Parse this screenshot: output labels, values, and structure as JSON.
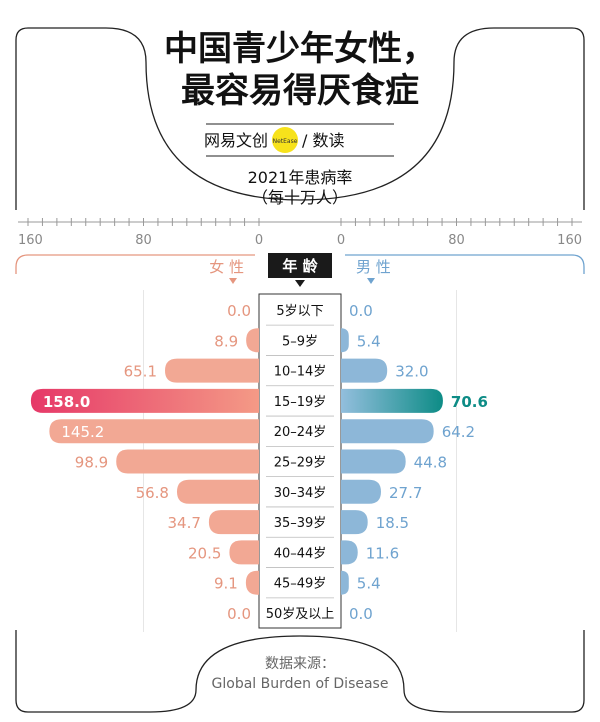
{
  "header": {
    "title_line1": "中国青少年女性，",
    "title_line2": "最容易得厌食症",
    "brand_left": "网易文创",
    "brand_badge": "NetEase",
    "brand_right": "/ 数读",
    "subtitle_line1": "2021年患病率",
    "subtitle_line2": "（每十万人）"
  },
  "source": {
    "label": "数据来源：",
    "name": "Global Burden of Disease"
  },
  "chart_data": {
    "type": "bar",
    "orientation": "horizontal-butterfly",
    "xlim": [
      0,
      160
    ],
    "left_ticks": [
      "160",
      "80",
      "0"
    ],
    "right_ticks": [
      "0",
      "80",
      "160"
    ],
    "left_header": "女 性",
    "right_header": "男 性",
    "center_header": "年 龄",
    "categories": [
      "5岁以下",
      "5–9岁",
      "10–14岁",
      "15–19岁",
      "20–24岁",
      "25–29岁",
      "30–34岁",
      "35–39岁",
      "40–44岁",
      "45–49岁",
      "50岁及以上"
    ],
    "series": [
      {
        "name": "女性",
        "values": [
          0.0,
          8.9,
          65.1,
          158.0,
          145.2,
          98.9,
          56.8,
          34.7,
          20.5,
          9.1,
          0.0
        ],
        "labels": [
          "0.0",
          "8.9",
          "65.1",
          "158.0",
          "145.2",
          "98.9",
          "56.8",
          "34.7",
          "20.5",
          "9.1",
          "0.0"
        ]
      },
      {
        "name": "男性",
        "values": [
          0.0,
          5.4,
          32.0,
          70.6,
          64.2,
          44.8,
          27.7,
          18.5,
          11.6,
          5.4,
          0.0
        ],
        "labels": [
          "0.0",
          "5.4",
          "32.0",
          "70.6",
          "64.2",
          "44.8",
          "27.7",
          "18.5",
          "11.6",
          "5.4",
          "0.0"
        ]
      }
    ],
    "colors": {
      "female_bar": "#f2a894",
      "female_label": "#e5967f",
      "female_highlight_start": "#e63868",
      "female_highlight_end": "#f49a86",
      "male_bar": "#8db7d8",
      "male_label": "#6fa3cf",
      "male_highlight_start": "#93bedd",
      "male_highlight_end": "#0d8c86",
      "male_highlight_label": "#0d8c86",
      "badge": "#f7e21b"
    },
    "highlight_index": 3
  }
}
